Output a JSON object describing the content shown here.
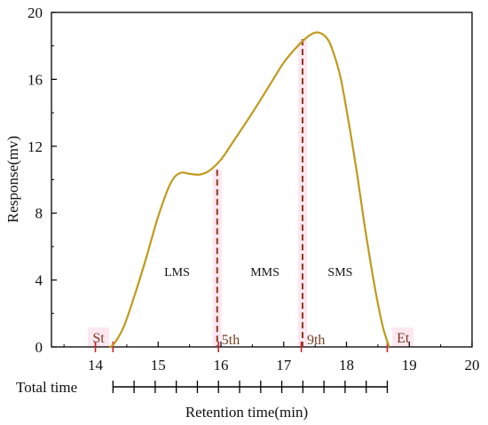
{
  "chart_data": {
    "type": "line",
    "xlabel": "Retention time(min)",
    "ylabel": "Response(mv)",
    "xlim": [
      13.3,
      20
    ],
    "ylim": [
      0,
      20
    ],
    "x_ticks": [
      14,
      15,
      16,
      17,
      18,
      19,
      20
    ],
    "y_ticks": [
      0,
      4,
      8,
      12,
      16,
      20
    ],
    "grid": false,
    "series": [
      {
        "color": "#c09a1c",
        "x": [
          14.22,
          14.3,
          14.45,
          14.6,
          14.8,
          15.0,
          15.2,
          15.35,
          15.5,
          15.65,
          15.8,
          16.0,
          16.2,
          16.5,
          16.8,
          17.0,
          17.2,
          17.4,
          17.55,
          17.7,
          17.8,
          17.9,
          18.0,
          18.15,
          18.3,
          18.45,
          18.58,
          18.68
        ],
        "y": [
          0,
          0.2,
          1.2,
          2.8,
          5.2,
          7.8,
          9.8,
          10.4,
          10.35,
          10.3,
          10.5,
          11.2,
          12.3,
          14.0,
          15.8,
          17.0,
          17.9,
          18.6,
          18.8,
          18.4,
          17.5,
          16.2,
          14.2,
          10.8,
          7.0,
          3.6,
          1.2,
          0
        ]
      }
    ],
    "dividers": [
      {
        "x": 15.94,
        "y_top": 10.6,
        "label": "5th"
      },
      {
        "x": 17.3,
        "y_top": 18.4,
        "label": "9th"
      }
    ],
    "markers": [
      {
        "label": "St",
        "x": 14.05
      },
      {
        "label": "Et",
        "x": 18.9
      }
    ],
    "red_ticks": [
      14.0,
      14.28,
      15.96,
      17.28,
      18.65
    ],
    "regions": [
      {
        "label": "LMS",
        "x": 15.3,
        "y": 4.5
      },
      {
        "label": "MMS",
        "x": 16.7,
        "y": 4.5
      },
      {
        "label": "SMS",
        "x": 17.9,
        "y": 4.5
      }
    ],
    "total_time": {
      "label": "Total time",
      "x_start": 14.28,
      "x_end": 18.65,
      "segments": 13
    }
  }
}
